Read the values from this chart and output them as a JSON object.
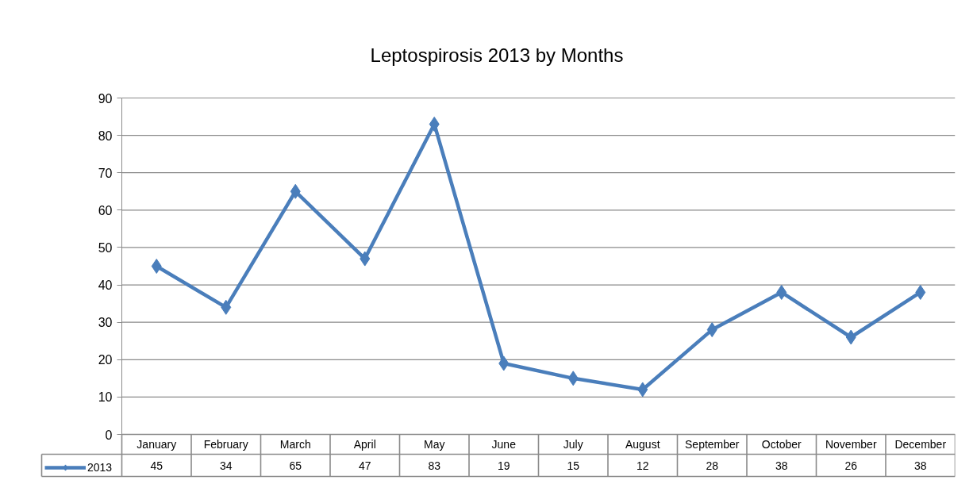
{
  "chart_data": {
    "type": "line",
    "title": "Leptospirosis 2013 by Months",
    "categories": [
      "January",
      "February",
      "March",
      "April",
      "May",
      "June",
      "July",
      "August",
      "September",
      "October",
      "November",
      "December"
    ],
    "series": [
      {
        "name": "2013",
        "color": "#4a7ebb",
        "values": [
          45,
          34,
          65,
          47,
          83,
          19,
          15,
          12,
          28,
          38,
          26,
          38
        ]
      }
    ],
    "ylim": [
      0,
      90
    ],
    "yticks": [
      0,
      10,
      20,
      30,
      40,
      50,
      60,
      70,
      80,
      90
    ],
    "grid": "y",
    "legend": "bottom left",
    "marker": "diamond",
    "line_style": "solid",
    "data_labels": true
  }
}
